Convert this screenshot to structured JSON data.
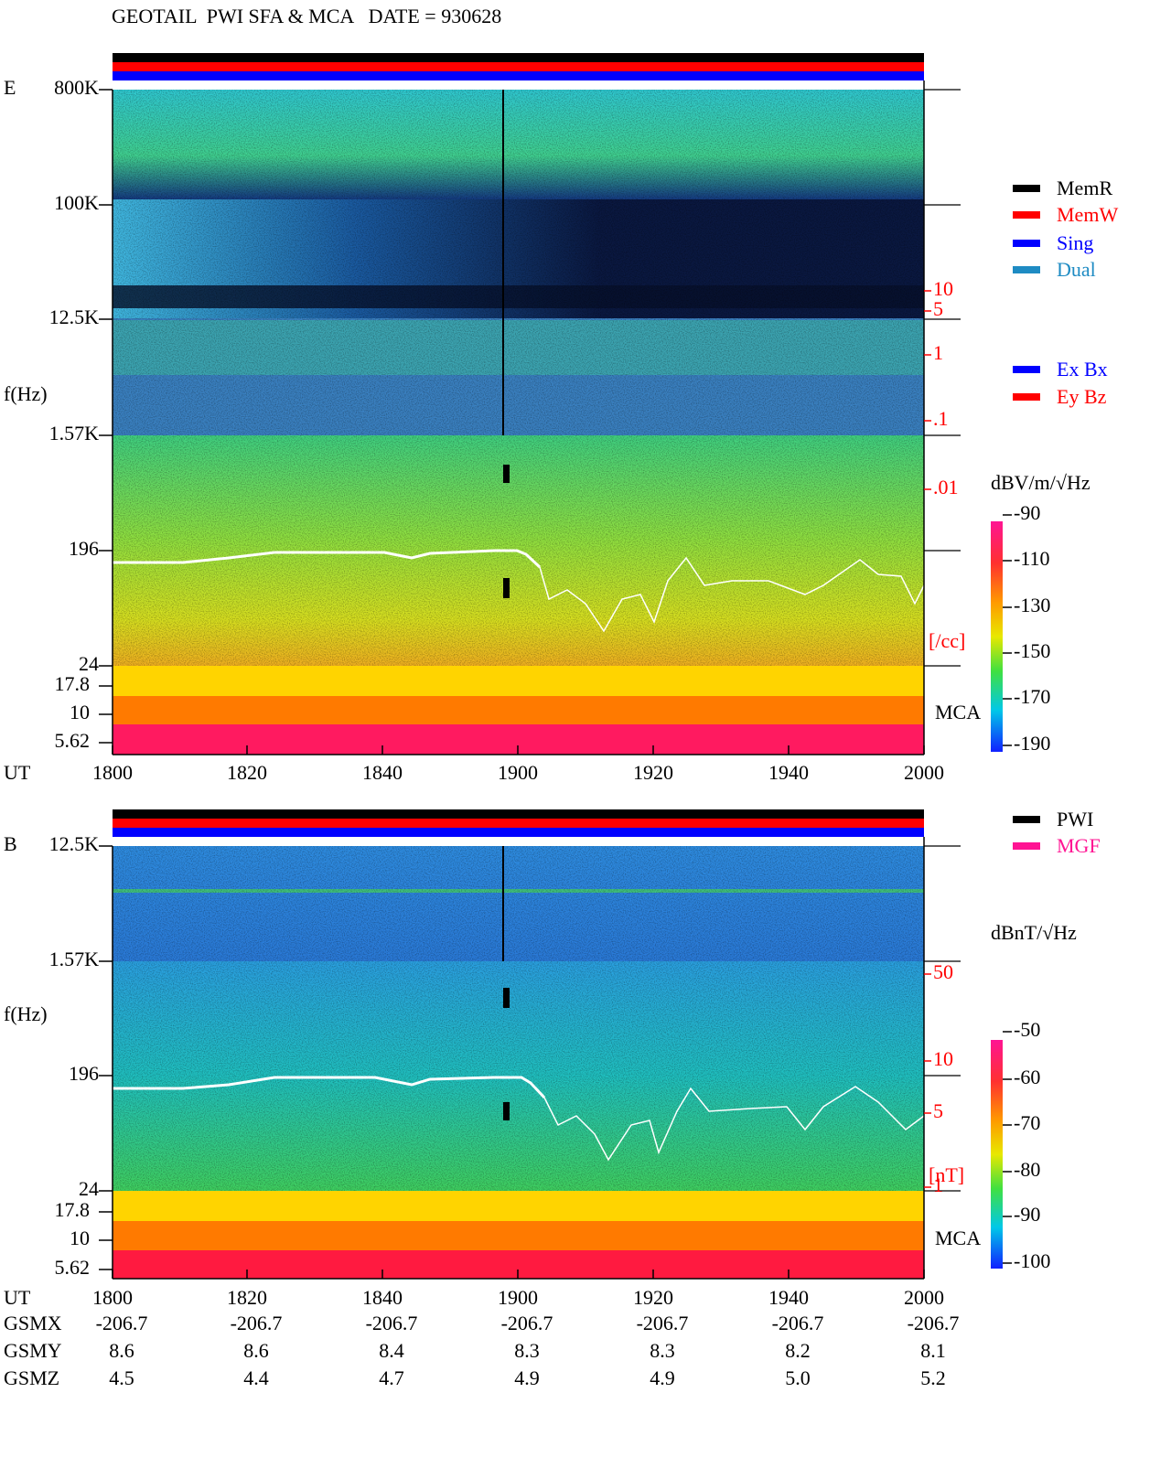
{
  "title": "GEOTAIL  PWI SFA & MCA   DATE = 930628",
  "panels": [
    {
      "label": "E",
      "yaxis_label": "f(Hz)",
      "freq_ticks": [
        "800K",
        "100K",
        "12.5K",
        "1.57K",
        "196",
        "24"
      ],
      "mca_ticks": [
        "17.8",
        "10",
        "5.62"
      ],
      "x_label": "UT",
      "x_ticks": [
        "1800",
        "1820",
        "1840",
        "1900",
        "1920",
        "1940",
        "2000"
      ],
      "density_ticks": [
        "10",
        "5",
        "1",
        ".1",
        ".01"
      ],
      "density_unit": "[/cc]",
      "mca_label": "MCA",
      "legend": [
        "MemR",
        "MemW",
        "Sing",
        "Dual"
      ],
      "legend2": [
        "Ex Bx",
        "Ey Bz"
      ],
      "colorbar_label": "dBV/m/√Hz",
      "colorbar_ticks": [
        "-90",
        "-110",
        "-130",
        "-150",
        "-170",
        "-190"
      ]
    },
    {
      "label": "B",
      "yaxis_label": "f(Hz)",
      "freq_ticks": [
        "12.5K",
        "1.57K",
        "196",
        "24"
      ],
      "mca_ticks": [
        "17.8",
        "10",
        "5.62"
      ],
      "x_label": "UT",
      "x_ticks": [
        "1800",
        "1820",
        "1840",
        "1900",
        "1920",
        "1940",
        "2000"
      ],
      "density_ticks": [
        "50",
        "10",
        "5",
        "1"
      ],
      "density_unit": "[nT]",
      "mca_label": "MCA",
      "legend": [
        "PWI",
        "MGF"
      ],
      "colorbar_label": "dBnT/√Hz",
      "colorbar_ticks": [
        "-50",
        "-60",
        "-70",
        "-80",
        "-90",
        "-100"
      ]
    }
  ],
  "orbit": {
    "rows": [
      {
        "name": "GSMX",
        "values": [
          "-206.7",
          "-206.7",
          "-206.7",
          "-206.7",
          "-206.7",
          "-206.7",
          "-206.7"
        ]
      },
      {
        "name": "GSMY",
        "values": [
          "8.6",
          "8.6",
          "8.4",
          "8.3",
          "8.3",
          "8.2",
          "8.1"
        ]
      },
      {
        "name": "GSMZ",
        "values": [
          "4.5",
          "4.4",
          "4.7",
          "4.9",
          "4.9",
          "5.0",
          "5.2"
        ]
      }
    ]
  }
}
